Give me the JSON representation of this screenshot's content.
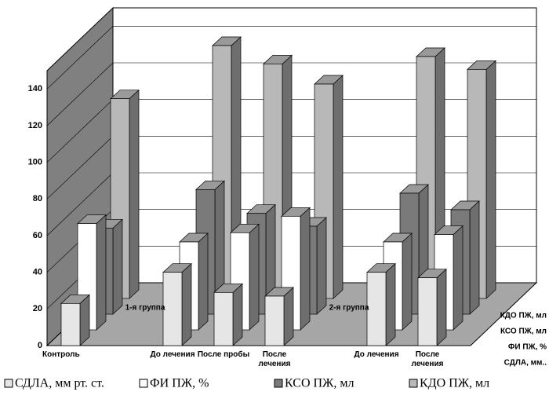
{
  "chart_data": {
    "type": "bar3d",
    "categories": [
      "Контроль",
      null,
      "До лечения",
      "После пробы",
      "После лечения",
      null,
      "До лечения",
      "После лечения"
    ],
    "annotations": [
      "1-я группа",
      "2-я группа"
    ],
    "series": [
      {
        "name": "СДЛА, мм рт. ст.",
        "depth_label": "СДЛА, мм..",
        "color": "#e6e6e6",
        "values": [
          23,
          null,
          40,
          29,
          27,
          null,
          40,
          37
        ]
      },
      {
        "name": "ФИ ПЖ, %",
        "depth_label": "ФИ ПЖ, %",
        "color": "#ffffff",
        "values": [
          58,
          null,
          48,
          53,
          62,
          null,
          48,
          52
        ]
      },
      {
        "name": "КСО ПЖ, мл",
        "depth_label": "КСО ПЖ, мл",
        "color": "#7a7a7a",
        "values": [
          47,
          null,
          68,
          55,
          48,
          null,
          66,
          57
        ]
      },
      {
        "name": "КДО ПЖ, мл",
        "depth_label": "КДО ПЖ, мл",
        "color": "#b8b8b8",
        "values": [
          109,
          null,
          138,
          128,
          117,
          null,
          132,
          125
        ]
      }
    ],
    "ylim": [
      0,
      150
    ],
    "yticks": [
      0,
      20,
      40,
      60,
      80,
      100,
      120,
      140
    ],
    "grid": true
  }
}
